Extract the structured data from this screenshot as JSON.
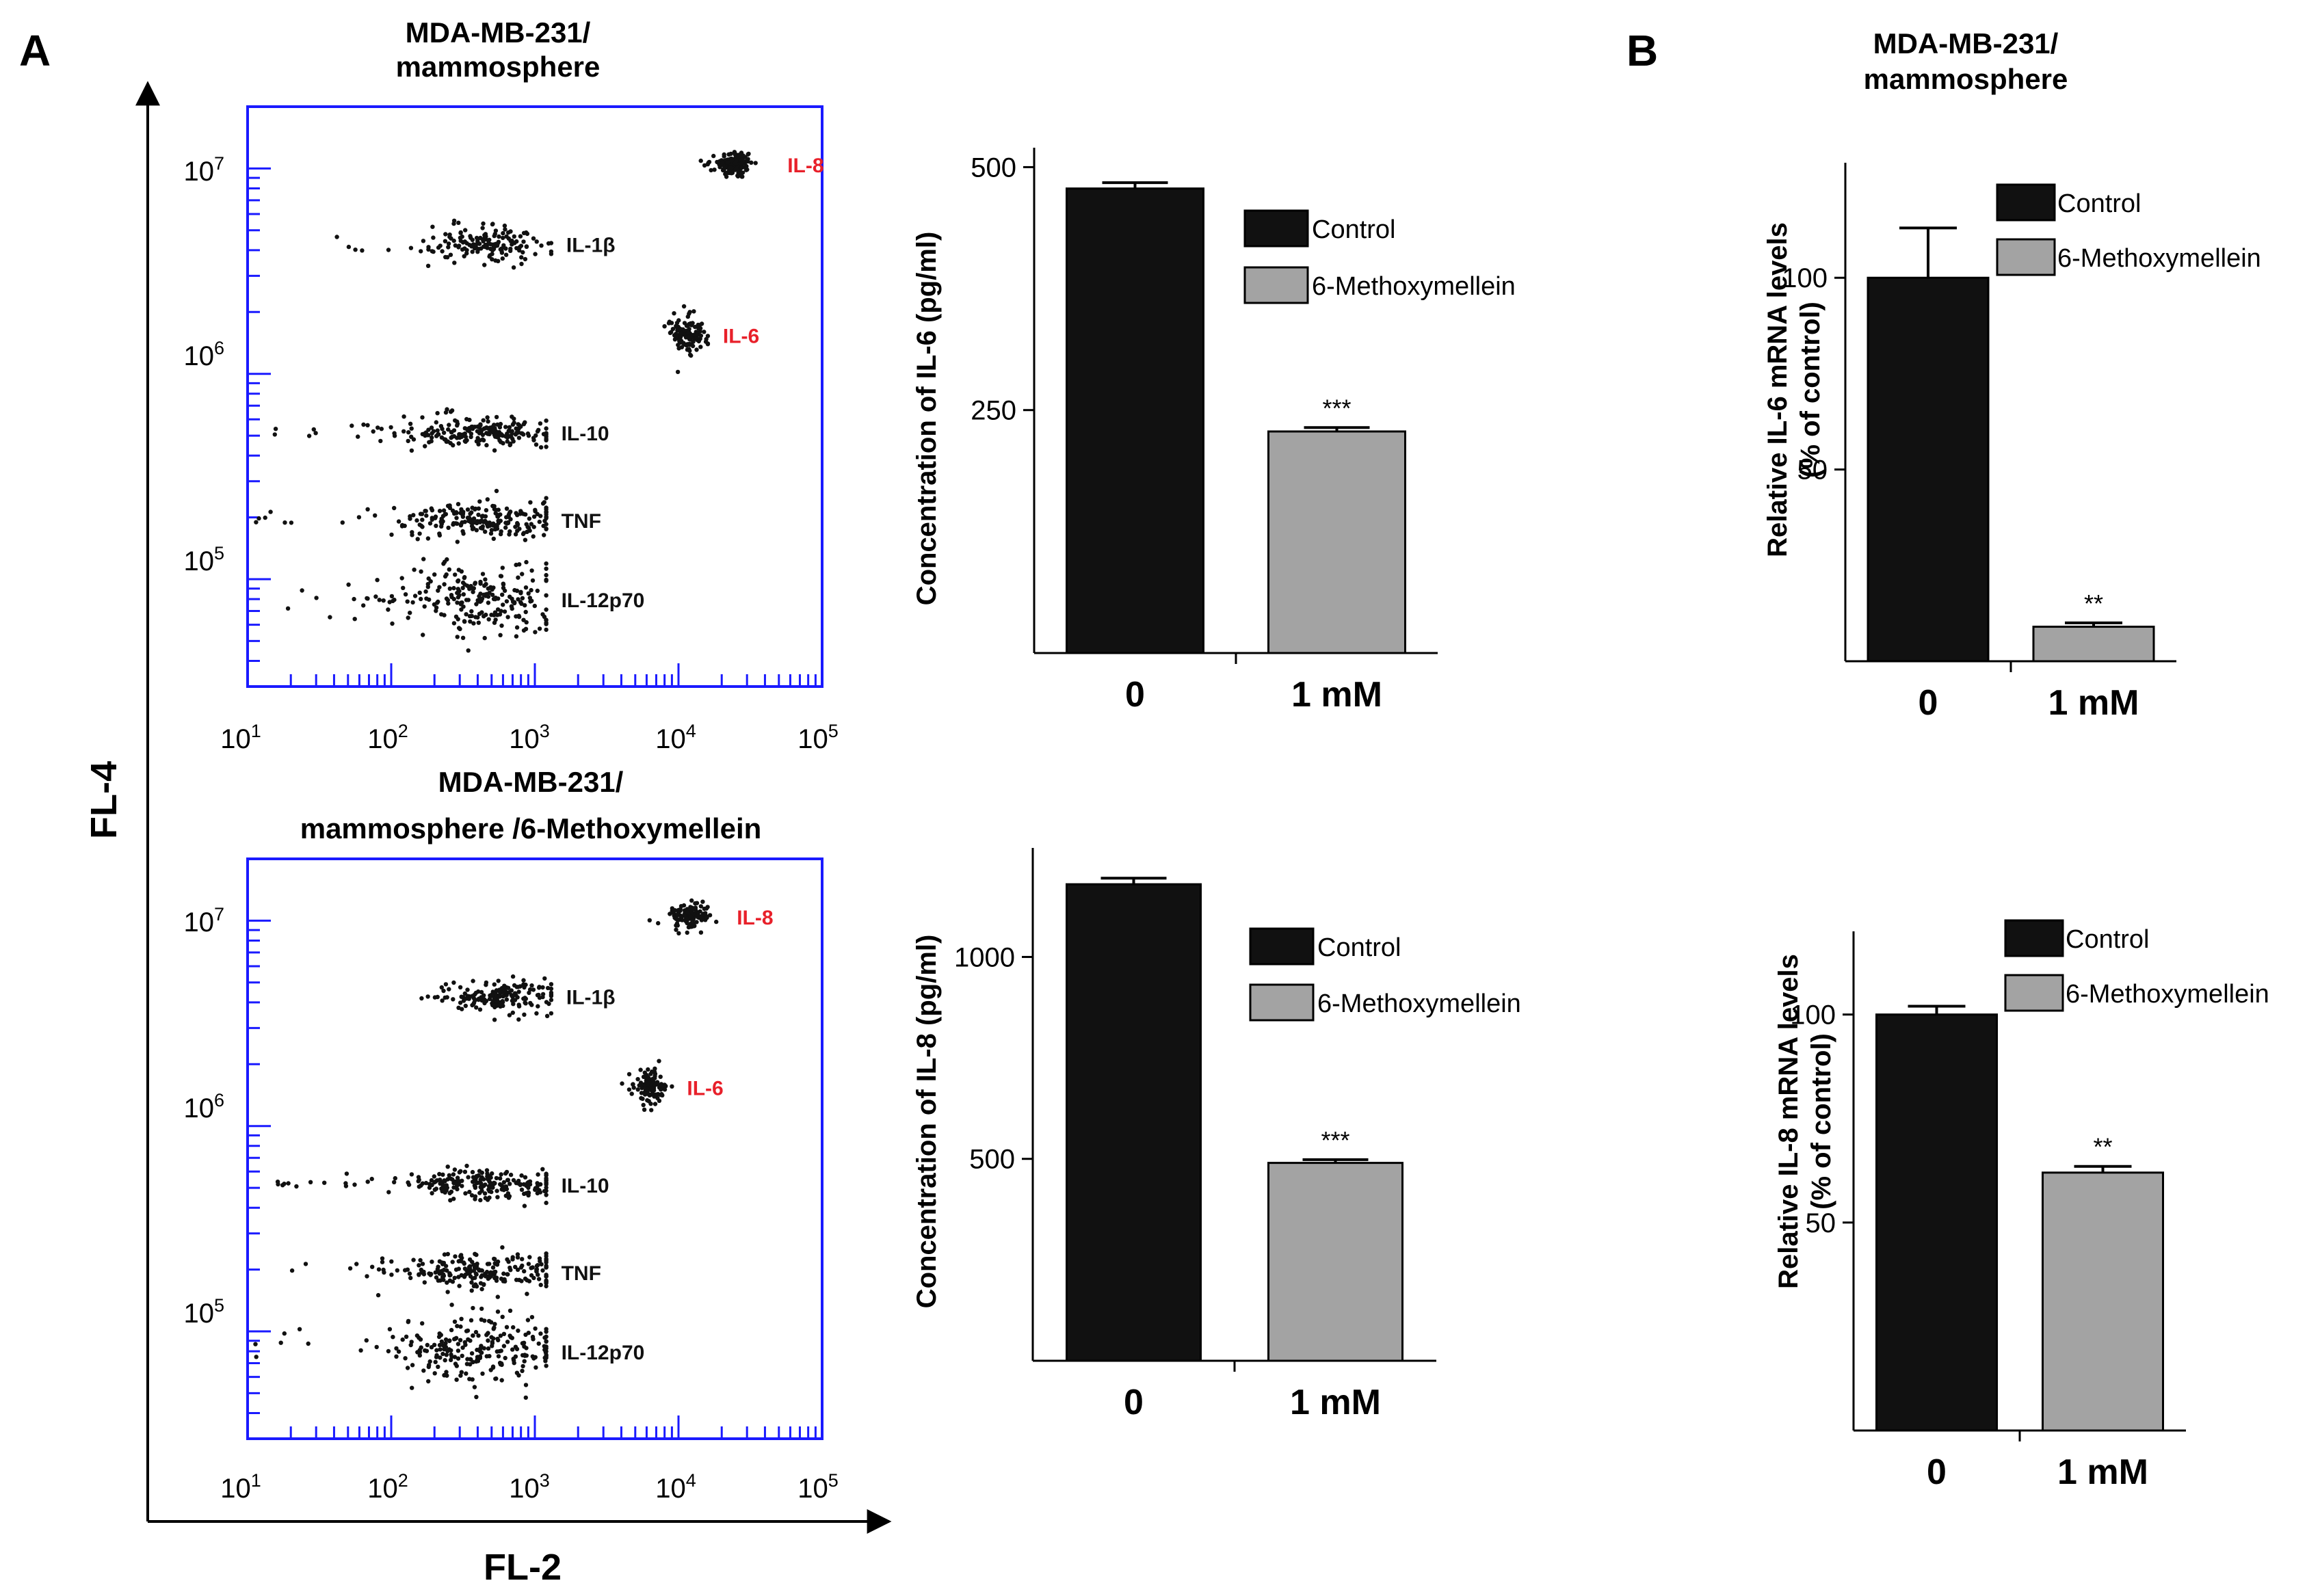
{
  "panel_labels": {
    "a": "A",
    "b": "B"
  },
  "colors": {
    "flow_frame": "#1a1aff",
    "highlight_label": "#e8202a",
    "control_bar": "#111111",
    "treated_bar": "#a3a3a3",
    "point": "#111111"
  },
  "chart_data": [
    {
      "id": "flow_top",
      "type": "scatter",
      "title_line1": "MDA-MB-231/",
      "title_line2": "mammosphere",
      "xlabel": "FL-2",
      "ylabel": "FL-4",
      "xscale": "log",
      "yscale": "log",
      "xlim": [
        10,
        100000
      ],
      "ylim": [
        30000,
        20000000
      ],
      "x_ticks": [
        {
          "base": "10",
          "exp": "1"
        },
        {
          "base": "10",
          "exp": "2"
        },
        {
          "base": "10",
          "exp": "3"
        },
        {
          "base": "10",
          "exp": "4"
        },
        {
          "base": "10",
          "exp": "5"
        }
      ],
      "y_ticks": [
        {
          "base": "10",
          "exp": "5"
        },
        {
          "base": "10",
          "exp": "6"
        },
        {
          "base": "10",
          "exp": "7"
        }
      ],
      "clusters": [
        {
          "label": "IL-8",
          "highlight": true,
          "x_center": 25000,
          "y_center": 10500000,
          "x_spread": 0.06,
          "y_spread": 0.035,
          "n": 140,
          "x_left": 12000,
          "x_right": 45000
        },
        {
          "label": "IL-1β",
          "highlight": false,
          "x_center": 500,
          "y_center": 4300000,
          "x_spread": 0.2,
          "y_spread": 0.04,
          "n": 160,
          "x_left": 40,
          "x_right": 1300
        },
        {
          "label": "IL-6",
          "highlight": true,
          "x_center": 12000,
          "y_center": 1550000,
          "x_spread": 0.06,
          "y_spread": 0.05,
          "n": 120,
          "x_left": 8000,
          "x_right": 16000
        },
        {
          "label": "IL-10",
          "highlight": false,
          "x_center": 400,
          "y_center": 520000,
          "x_spread": 0.28,
          "y_spread": 0.035,
          "n": 220,
          "x_left": 15,
          "x_right": 1200
        },
        {
          "label": "TNF",
          "highlight": false,
          "x_center": 450,
          "y_center": 195000,
          "x_spread": 0.28,
          "y_spread": 0.045,
          "n": 220,
          "x_left": 10,
          "x_right": 1200
        },
        {
          "label": "IL-12p70",
          "highlight": false,
          "x_center": 450,
          "y_center": 80000,
          "x_spread": 0.3,
          "y_spread": 0.09,
          "n": 240,
          "x_left": 15,
          "x_right": 1200
        }
      ]
    },
    {
      "id": "flow_bottom",
      "type": "scatter",
      "title_line1": "MDA-MB-231/",
      "title_line2": "mammosphere /6-Methoxymellein",
      "xlabel": "FL-2",
      "ylabel": "FL-4",
      "xscale": "log",
      "yscale": "log",
      "xlim": [
        10,
        100000
      ],
      "ylim": [
        30000,
        20000000
      ],
      "x_ticks": [
        {
          "base": "10",
          "exp": "1"
        },
        {
          "base": "10",
          "exp": "2"
        },
        {
          "base": "10",
          "exp": "3"
        },
        {
          "base": "10",
          "exp": "4"
        },
        {
          "base": "10",
          "exp": "5"
        }
      ],
      "y_ticks": [
        {
          "base": "10",
          "exp": "5"
        },
        {
          "base": "10",
          "exp": "6"
        },
        {
          "base": "10",
          "exp": "7"
        }
      ],
      "clusters": [
        {
          "label": "IL-8",
          "highlight": true,
          "x_center": 12000,
          "y_center": 10500000,
          "x_spread": 0.06,
          "y_spread": 0.035,
          "n": 120,
          "x_left": 6000,
          "x_right": 20000
        },
        {
          "label": "IL-1β",
          "highlight": false,
          "x_center": 600,
          "y_center": 4300000,
          "x_spread": 0.2,
          "y_spread": 0.04,
          "n": 160,
          "x_left": 120,
          "x_right": 1300
        },
        {
          "label": "IL-6",
          "highlight": true,
          "x_center": 6500,
          "y_center": 1550000,
          "x_spread": 0.06,
          "y_spread": 0.04,
          "n": 120,
          "x_left": 4000,
          "x_right": 9000
        },
        {
          "label": "IL-10",
          "highlight": false,
          "x_center": 450,
          "y_center": 520000,
          "x_spread": 0.28,
          "y_spread": 0.035,
          "n": 220,
          "x_left": 15,
          "x_right": 1200
        },
        {
          "label": "TNF",
          "highlight": false,
          "x_center": 450,
          "y_center": 195000,
          "x_spread": 0.28,
          "y_spread": 0.045,
          "n": 220,
          "x_left": 12,
          "x_right": 1200
        },
        {
          "label": "IL-12p70",
          "highlight": false,
          "x_center": 450,
          "y_center": 80000,
          "x_spread": 0.3,
          "y_spread": 0.09,
          "n": 240,
          "x_left": 10,
          "x_right": 1200
        }
      ]
    },
    {
      "id": "bar_il6_conc",
      "type": "bar",
      "categories": [
        "0",
        "1 mM"
      ],
      "series": [
        {
          "name": "Control",
          "value": 478,
          "error": 6
        },
        {
          "name": "6-Methoxymellein",
          "value": 228,
          "error": 4
        }
      ],
      "significance": "***",
      "ylabel": "Concentration of IL-6 (pg/ml)",
      "ylim": [
        0,
        520
      ],
      "yticks": [
        250,
        500
      ]
    },
    {
      "id": "bar_il8_conc",
      "type": "bar",
      "categories": [
        "0",
        "1 mM"
      ],
      "series": [
        {
          "name": "Control",
          "value": 1180,
          "error": 15
        },
        {
          "name": "6-Methoxymellein",
          "value": 490,
          "error": 8
        }
      ],
      "significance": "***",
      "ylabel": "Concentration of IL-8 (pg/ml)",
      "ylim": [
        0,
        1270
      ],
      "yticks": [
        500,
        1000
      ]
    },
    {
      "id": "bar_il6_mrna",
      "type": "bar",
      "title_line1": "MDA-MB-231/",
      "title_line2": "mammosphere",
      "categories": [
        "0",
        "1 mM"
      ],
      "series": [
        {
          "name": "Control",
          "value": 100,
          "error": 13
        },
        {
          "name": "6-Methoxymellein",
          "value": 9,
          "error": 1
        }
      ],
      "significance": "**",
      "ylabel_line1": "Relative IL-6 mRNA levels",
      "ylabel_line2": "(% of control)",
      "ylim": [
        0,
        130
      ],
      "yticks": [
        50,
        100
      ]
    },
    {
      "id": "bar_il8_mrna",
      "type": "bar",
      "categories": [
        "0",
        "1 mM"
      ],
      "series": [
        {
          "name": "Control",
          "value": 100,
          "error": 2
        },
        {
          "name": "6-Methoxymellein",
          "value": 62,
          "error": 1.5
        }
      ],
      "significance": "**",
      "ylabel_line1": "Relative IL-8 mRNA levels",
      "ylabel_line2": "(% of control)",
      "ylim": [
        0,
        120
      ],
      "yticks": [
        50,
        100
      ]
    }
  ]
}
